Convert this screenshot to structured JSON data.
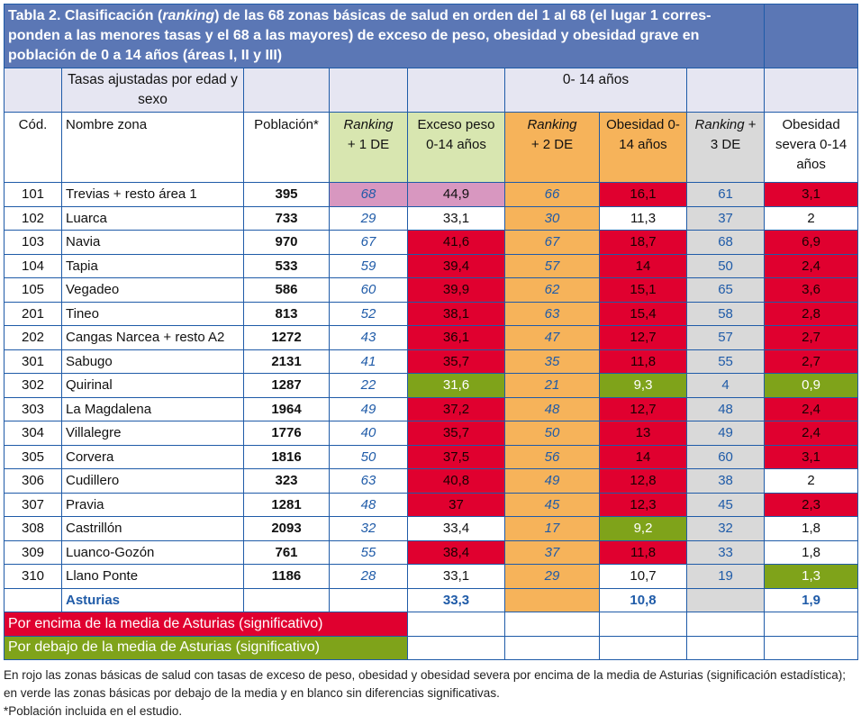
{
  "title": "Tabla 2. Clasificación (ranking) de las 68 zonas básicas de salud en orden del 1 al 68 (el lugar 1 corresponden a las menores tasas y el 68 a las mayores) de exceso de peso, obesidad y obesidad grave en población de 0 a 14 años (áreas I, II y III)",
  "title_parts": {
    "a": "Tabla 2. Clasificación (",
    "b": "ranking",
    "c": ") de las 68 zonas básicas de salud en orden del 1 al 68 (el lugar 1 corres-ponden a las menores tasas y el 68 a las mayores) de exceso de peso, obesidad y obesidad grave en población de 0 a 14 años (áreas I, II y III)"
  },
  "subheader": {
    "tasas": "Tasas ajustadas por edad y sexo",
    "age_group": "0- 14 años"
  },
  "columns": {
    "cod": "Cód.",
    "nombre": "Nombre zona",
    "poblacion": "Población*",
    "rank1_a": "Ranking",
    "rank1_b": "+ 1 DE",
    "exceso": "Exceso peso 0-14 años",
    "rank2_a": "Ranking",
    "rank2_b": "+ 2 DE",
    "obesidad": "Obesidad 0-14 años",
    "rank3_a": "Ranking",
    "rank3_b": "+ 3 DE",
    "severa": "Obesidad severa 0-14 años"
  },
  "colors": {
    "above": "#e0002f",
    "below": "#7fa31a",
    "highlight": "#d897c0",
    "header": "#5b77b5"
  },
  "rows": [
    {
      "cod": "101",
      "nombre": "Trevias + resto área 1",
      "pob": "395",
      "r1": "68",
      "ex": "44,9",
      "ex_s": "pink",
      "r2": "66",
      "ob": "16,1",
      "ob_s": "high",
      "r3": "61",
      "sev": "3,1",
      "sev_s": "high",
      "r1_s": "pink"
    },
    {
      "cod": "102",
      "nombre": "Luarca",
      "pob": "733",
      "r1": "29",
      "ex": "33,1",
      "ex_s": "none",
      "r2": "30",
      "ob": "11,3",
      "ob_s": "none",
      "r3": "37",
      "sev": "2",
      "sev_s": "none"
    },
    {
      "cod": "103",
      "nombre": "Navia",
      "pob": "970",
      "r1": "67",
      "ex": "41,6",
      "ex_s": "high",
      "r2": "67",
      "ob": "18,7",
      "ob_s": "high",
      "r3": "68",
      "sev": "6,9",
      "sev_s": "high"
    },
    {
      "cod": "104",
      "nombre": "Tapia",
      "pob": "533",
      "r1": "59",
      "ex": "39,4",
      "ex_s": "high",
      "r2": "57",
      "ob": "14",
      "ob_s": "high",
      "r3": "50",
      "sev": "2,4",
      "sev_s": "high"
    },
    {
      "cod": "105",
      "nombre": "Vegadeo",
      "pob": "586",
      "r1": "60",
      "ex": "39,9",
      "ex_s": "high",
      "r2": "62",
      "ob": "15,1",
      "ob_s": "high",
      "r3": "65",
      "sev": "3,6",
      "sev_s": "high"
    },
    {
      "cod": "201",
      "nombre": "Tineo",
      "pob": "813",
      "r1": "52",
      "ex": "38,1",
      "ex_s": "high",
      "r2": "63",
      "ob": "15,4",
      "ob_s": "high",
      "r3": "58",
      "sev": "2,8",
      "sev_s": "high"
    },
    {
      "cod": "202",
      "nombre": "Cangas Narcea + resto A2",
      "pob": "1272",
      "r1": "43",
      "ex": "36,1",
      "ex_s": "high",
      "r2": "47",
      "ob": "12,7",
      "ob_s": "high",
      "r3": "57",
      "sev": "2,7",
      "sev_s": "high"
    },
    {
      "cod": "301",
      "nombre": "Sabugo",
      "pob": "2131",
      "r1": "41",
      "ex": "35,7",
      "ex_s": "high",
      "r2": "35",
      "ob": "11,8",
      "ob_s": "high",
      "r3": "55",
      "sev": "2,7",
      "sev_s": "high"
    },
    {
      "cod": "302",
      "nombre": "Quirinal",
      "pob": "1287",
      "r1": "22",
      "ex": "31,6",
      "ex_s": "low",
      "r2": "21",
      "ob": "9,3",
      "ob_s": "low",
      "r3": "4",
      "sev": "0,9",
      "sev_s": "low"
    },
    {
      "cod": "303",
      "nombre": "La Magdalena",
      "pob": "1964",
      "r1": "49",
      "ex": "37,2",
      "ex_s": "high",
      "r2": "48",
      "ob": "12,7",
      "ob_s": "high",
      "r3": "48",
      "sev": "2,4",
      "sev_s": "high"
    },
    {
      "cod": "304",
      "nombre": "Villalegre",
      "pob": "1776",
      "r1": "40",
      "ex": "35,7",
      "ex_s": "high",
      "r2": "50",
      "ob": "13",
      "ob_s": "high",
      "r3": "49",
      "sev": "2,4",
      "sev_s": "high"
    },
    {
      "cod": "305",
      "nombre": "Corvera",
      "pob": "1816",
      "r1": "50",
      "ex": "37,5",
      "ex_s": "high",
      "r2": "56",
      "ob": "14",
      "ob_s": "high",
      "r3": "60",
      "sev": "3,1",
      "sev_s": "high"
    },
    {
      "cod": "306",
      "nombre": "Cudillero",
      "pob": "323",
      "r1": "63",
      "ex": "40,8",
      "ex_s": "high",
      "r2": "49",
      "ob": "12,8",
      "ob_s": "high",
      "r3": "38",
      "sev": "2",
      "sev_s": "none"
    },
    {
      "cod": "307",
      "nombre": "Pravia",
      "pob": "1281",
      "r1": "48",
      "ex": "37",
      "ex_s": "high",
      "r2": "45",
      "ob": "12,3",
      "ob_s": "high",
      "r3": "45",
      "sev": "2,3",
      "sev_s": "high"
    },
    {
      "cod": "308",
      "nombre": "Castrillón",
      "pob": "2093",
      "r1": "32",
      "ex": "33,4",
      "ex_s": "none",
      "r2": "17",
      "ob": "9,2",
      "ob_s": "low",
      "r3": "32",
      "sev": "1,8",
      "sev_s": "none"
    },
    {
      "cod": "309",
      "nombre": "Luanco-Gozón",
      "pob": "761",
      "r1": "55",
      "ex": "38,4",
      "ex_s": "high",
      "r2": "37",
      "ob": "11,8",
      "ob_s": "high",
      "r3": "33",
      "sev": "1,8",
      "sev_s": "none"
    },
    {
      "cod": "310",
      "nombre": "Llano Ponte",
      "pob": "1186",
      "r1": "28",
      "ex": "33,1",
      "ex_s": "none",
      "r2": "29",
      "ob": "10,7",
      "ob_s": "none",
      "r3": "19",
      "sev": "1,3",
      "sev_s": "low"
    }
  ],
  "total": {
    "nombre": "Asturias",
    "ex": "33,3",
    "ob": "10,8",
    "sev": "1,9"
  },
  "legend": {
    "above": "Por encima de la media de Asturias (significativo)",
    "below": "Por debajo de la media de Asturias (significativo)"
  },
  "footnotes": {
    "note": "En rojo las zonas básicas de salud con tasas de exceso de peso, obesidad y obesidad severa por encima de la media de Asturias (significación estadística); en verde las zonas básicas por debajo de la media y en blanco sin diferencias significativas.",
    "population": "*Población incluida en el estudio."
  }
}
